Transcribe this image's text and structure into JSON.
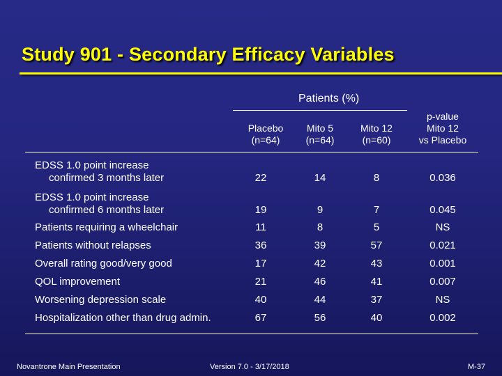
{
  "title": "Study 901 - Secondary Efficacy Variables",
  "table": {
    "group_header": "Patients (%)",
    "columns": [
      {
        "line1": "Placebo",
        "line2": "(n=64)"
      },
      {
        "line1": "Mito 5",
        "line2": "(n=64)"
      },
      {
        "line1": "Mito 12",
        "line2": "(n=60)"
      },
      {
        "line0": "p-value",
        "line1": "Mito 12",
        "line2": "vs Placebo"
      }
    ],
    "rows": [
      {
        "label1": "EDSS 1.0 point increase",
        "label2": "confirmed 3 months later",
        "values": [
          "22",
          "14",
          "8",
          "0.036"
        ]
      },
      {
        "label1": "EDSS 1.0 point increase",
        "label2": "confirmed 6 months later",
        "values": [
          "19",
          "9",
          "7",
          "0.045"
        ]
      },
      {
        "label1": "Patients requiring a wheelchair",
        "values": [
          "11",
          "8",
          "5",
          "NS"
        ]
      },
      {
        "label1": "Patients without relapses",
        "values": [
          "36",
          "39",
          "57",
          "0.021"
        ]
      },
      {
        "label1": "Overall rating good/very good",
        "values": [
          "17",
          "42",
          "43",
          "0.001"
        ]
      },
      {
        "label1": "QOL improvement",
        "values": [
          "21",
          "46",
          "41",
          "0.007"
        ]
      },
      {
        "label1": "Worsening depression scale",
        "values": [
          "40",
          "44",
          "37",
          "NS"
        ]
      },
      {
        "label1": "Hospitalization other than drug admin.",
        "values": [
          "67",
          "56",
          "40",
          "0.002"
        ]
      }
    ]
  },
  "footer": {
    "left": "Novantrone Main Presentation",
    "center": "Version 7.0 - 3/17/2018",
    "right": "M-37"
  },
  "colors": {
    "background": "#242680",
    "title": "#ffff00",
    "text": "#ffffff"
  }
}
